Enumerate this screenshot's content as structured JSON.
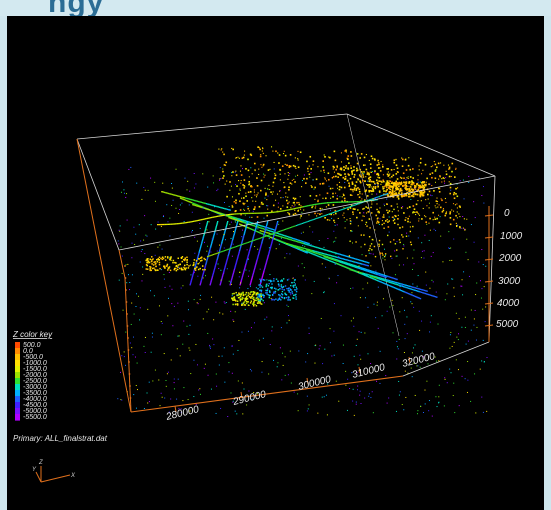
{
  "page": {
    "background": "#cfe6ee",
    "viewport_bg": "#000000"
  },
  "header_strip": {
    "text": "ngy"
  },
  "scene": {
    "box_color": "#d8d8d8",
    "axis_color": "#e0701c",
    "x_axis": {
      "ticks": [
        "280000",
        "290000",
        "300000",
        "310000",
        "320000"
      ]
    },
    "z_axis": {
      "ticks": [
        "0",
        "1000",
        "2000",
        "3000",
        "4000",
        "5000"
      ]
    }
  },
  "legend": {
    "title": "Z color key",
    "entries": [
      {
        "label": "500.0",
        "color": "#ff4a00"
      },
      {
        "label": "0.0",
        "color": "#ff8a00"
      },
      {
        "label": "-500.0",
        "color": "#ffc000"
      },
      {
        "label": "-1000.0",
        "color": "#ffe000"
      },
      {
        "label": "-1500.0",
        "color": "#e0f000"
      },
      {
        "label": "-2000.0",
        "color": "#9be000"
      },
      {
        "label": "-2500.0",
        "color": "#30e030"
      },
      {
        "label": "-3000.0",
        "color": "#00e0c0"
      },
      {
        "label": "-3500.0",
        "color": "#00b0ff"
      },
      {
        "label": "-4000.0",
        "color": "#2060ff"
      },
      {
        "label": "-4500.0",
        "color": "#4020ff"
      },
      {
        "label": "-5000.0",
        "color": "#7a10ff"
      },
      {
        "label": "-5500.0",
        "color": "#b000ff"
      }
    ],
    "primary_label": "Primary:  ALL_finalstrat.dat"
  },
  "triad": {
    "x": "X",
    "y": "Y",
    "z": "Z",
    "color": "#e0701c"
  }
}
